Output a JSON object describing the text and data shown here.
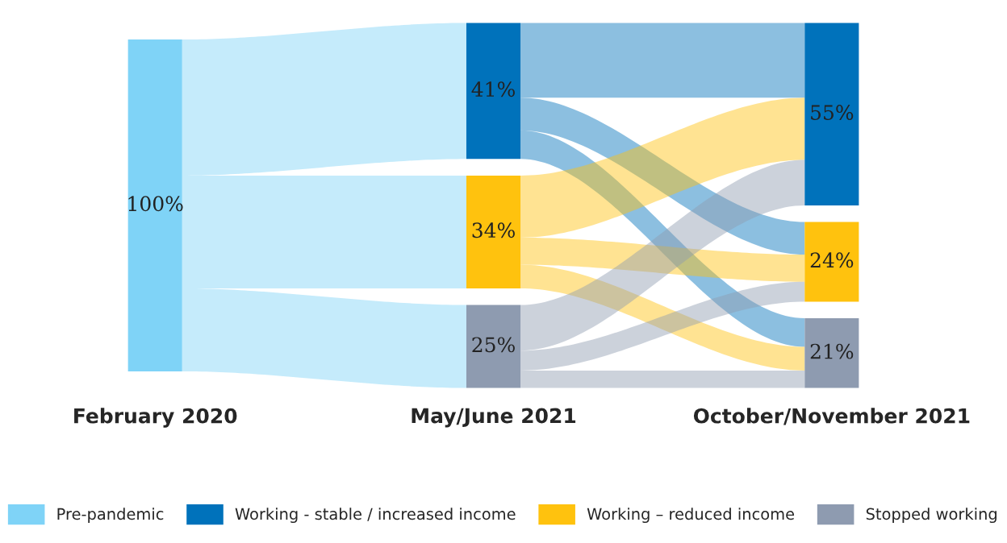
{
  "chart_data": {
    "type": "other",
    "categories": [
      "February 2020",
      "May/June 2021",
      "October/November 2021"
    ],
    "series": [
      {
        "name": "Pre-pandemic",
        "color": "#7fd3f7",
        "values": [
          100,
          null,
          null
        ],
        "value_labels": [
          "100%",
          null,
          null
        ]
      },
      {
        "name": "Working - stable / increased income",
        "color": "#0072bb",
        "values": [
          null,
          41,
          55
        ],
        "value_labels": [
          null,
          "41%",
          "55%"
        ]
      },
      {
        "name": "Working – reduced income",
        "color": "#ffc20e",
        "values": [
          null,
          34,
          24
        ],
        "value_labels": [
          null,
          "34%",
          "24%"
        ]
      },
      {
        "name": "Stopped working",
        "color": "#8e9bb0",
        "values": [
          null,
          25,
          21
        ],
        "value_labels": [
          null,
          "25%",
          "21%"
        ]
      }
    ],
    "legend": "bottom"
  }
}
